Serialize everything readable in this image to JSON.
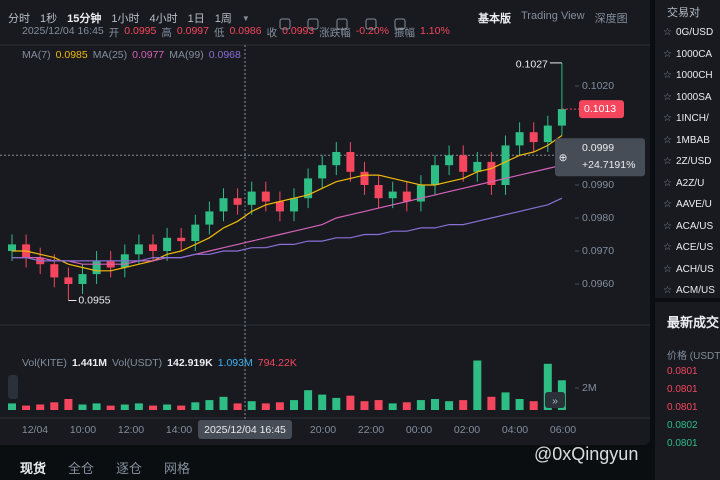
{
  "toolbar": {
    "intervals": [
      "分时",
      "1秒",
      "15分钟",
      "1小时",
      "4小时",
      "1日",
      "1周"
    ],
    "views": [
      "基本版",
      "Trading View",
      "深度图"
    ]
  },
  "info": {
    "time": "2025/12/04 16:45",
    "fields": [
      {
        "label": "开",
        "value": "0.0995"
      },
      {
        "label": "高",
        "value": "0.0997"
      },
      {
        "label": "低",
        "value": "0.0986"
      },
      {
        "label": "收",
        "value": "0.0993"
      },
      {
        "label": "涨跌幅",
        "value": "-0.20%"
      },
      {
        "label": "振幅",
        "value": "1.10%"
      }
    ]
  },
  "ma_legend": [
    {
      "label": "MA(7)",
      "value": "0.0985"
    },
    {
      "label": "MA(25)",
      "value": "0.0977"
    },
    {
      "label": "MA(99)",
      "value": "0.0968"
    }
  ],
  "vol_legend": [
    {
      "label": "Vol(KITE)",
      "value": "1.441M"
    },
    {
      "label": "Vol(USDT)",
      "value": "142.919K"
    },
    {
      "value": "1.093M"
    },
    {
      "value": "794.22K"
    }
  ],
  "chart_data": {
    "type": "candlestick",
    "open": [
      0.097,
      0.0972,
      0.0968,
      0.0966,
      0.0962,
      0.096,
      0.0963,
      0.0967,
      0.0965,
      0.0969,
      0.0972,
      0.097,
      0.0974,
      0.0973,
      0.0978,
      0.0982,
      0.0986,
      0.0984,
      0.0988,
      0.0985,
      0.0982,
      0.0986,
      0.0992,
      0.0996,
      0.1,
      0.0994,
      0.099,
      0.0986,
      0.0988,
      0.0985,
      0.099,
      0.0996,
      0.0999,
      0.0994,
      0.0997,
      0.099,
      0.1002,
      0.1006,
      0.1003,
      0.1008
    ],
    "high": [
      0.0975,
      0.0975,
      0.0971,
      0.0969,
      0.0965,
      0.0966,
      0.097,
      0.097,
      0.0972,
      0.0975,
      0.0975,
      0.0977,
      0.0977,
      0.0981,
      0.0985,
      0.0989,
      0.0989,
      0.0991,
      0.0991,
      0.0988,
      0.0989,
      0.0995,
      0.0999,
      0.1003,
      0.1003,
      0.0997,
      0.0993,
      0.0991,
      0.0991,
      0.0993,
      0.0999,
      0.1002,
      0.1002,
      0.1,
      0.1,
      0.1005,
      0.1009,
      0.1009,
      0.1011,
      0.1027
    ],
    "low": [
      0.0967,
      0.0965,
      0.0963,
      0.0959,
      0.0955,
      0.0957,
      0.096,
      0.0962,
      0.0962,
      0.0966,
      0.0967,
      0.0967,
      0.097,
      0.097,
      0.0975,
      0.0979,
      0.0981,
      0.0981,
      0.0982,
      0.0979,
      0.0979,
      0.0983,
      0.0989,
      0.0993,
      0.0991,
      0.0987,
      0.0983,
      0.0983,
      0.0982,
      0.0982,
      0.0987,
      0.0993,
      0.0991,
      0.0991,
      0.0987,
      0.0987,
      0.0999,
      0.1,
      0.1,
      0.1005
    ],
    "close": [
      0.0972,
      0.0968,
      0.0966,
      0.0962,
      0.096,
      0.0963,
      0.0967,
      0.0965,
      0.0969,
      0.0972,
      0.097,
      0.0974,
      0.0973,
      0.0978,
      0.0982,
      0.0986,
      0.0984,
      0.0988,
      0.0985,
      0.0982,
      0.0986,
      0.0992,
      0.0996,
      0.1,
      0.0994,
      0.099,
      0.0986,
      0.0988,
      0.0985,
      0.099,
      0.0996,
      0.0999,
      0.0994,
      0.0997,
      0.099,
      0.1002,
      0.1006,
      0.1003,
      0.1008,
      0.1013
    ],
    "volume": [
      0.6,
      0.4,
      0.5,
      0.7,
      1.0,
      0.5,
      0.6,
      0.4,
      0.5,
      0.6,
      0.4,
      0.5,
      0.4,
      0.7,
      0.9,
      1.2,
      0.6,
      0.8,
      0.6,
      0.7,
      0.9,
      1.8,
      1.4,
      1.1,
      1.3,
      0.8,
      0.9,
      0.6,
      0.7,
      0.9,
      1.0,
      0.8,
      0.9,
      4.5,
      1.2,
      1.6,
      1.0,
      0.8,
      4.2,
      2.7
    ],
    "ma": [
      {
        "color": "#f0b90b",
        "values": [
          0.097,
          0.097,
          0.0969,
          0.0968,
          0.0966,
          0.0965,
          0.0964,
          0.0964,
          0.0965,
          0.0966,
          0.0967,
          0.0969,
          0.097,
          0.0972,
          0.0974,
          0.0977,
          0.0979,
          0.0982,
          0.0984,
          0.0985,
          0.0986,
          0.0987,
          0.0989,
          0.0991,
          0.0992,
          0.0993,
          0.0993,
          0.0992,
          0.0991,
          0.099,
          0.099,
          0.0991,
          0.0992,
          0.0994,
          0.0995,
          0.0997,
          0.0999,
          0.1,
          0.1002,
          0.1005
        ]
      },
      {
        "color": "#d563b8",
        "values": [
          0.0968,
          0.0968,
          0.0968,
          0.0967,
          0.0967,
          0.0966,
          0.0966,
          0.0966,
          0.0966,
          0.0967,
          0.0967,
          0.0968,
          0.0968,
          0.0969,
          0.097,
          0.0971,
          0.0972,
          0.0973,
          0.0974,
          0.0975,
          0.0976,
          0.0977,
          0.0978,
          0.098,
          0.0981,
          0.0982,
          0.0983,
          0.0984,
          0.0985,
          0.0986,
          0.0987,
          0.0988,
          0.0989,
          0.099,
          0.0991,
          0.0992,
          0.0993,
          0.0994,
          0.0995,
          0.0996
        ]
      },
      {
        "color": "#8a6fd6",
        "values": [
          0.0968,
          0.0968,
          0.0967,
          0.0967,
          0.0967,
          0.0967,
          0.0967,
          0.0967,
          0.0967,
          0.0967,
          0.0968,
          0.0968,
          0.0968,
          0.0969,
          0.0969,
          0.097,
          0.097,
          0.0971,
          0.0971,
          0.0972,
          0.0972,
          0.0973,
          0.0973,
          0.0974,
          0.0974,
          0.0975,
          0.0975,
          0.0976,
          0.0976,
          0.0977,
          0.0977,
          0.0978,
          0.0978,
          0.0979,
          0.098,
          0.0981,
          0.0982,
          0.0983,
          0.0984,
          0.0986
        ]
      }
    ],
    "up_color": "#2ebd85",
    "down_color": "#f6465d",
    "yticks": [
      {
        "value": 0.096,
        "label": "0.0960"
      },
      {
        "value": 0.097,
        "label": "0.0970"
      },
      {
        "value": 0.098,
        "label": "0.0980"
      },
      {
        "value": 0.099,
        "label": "0.0990"
      },
      {
        "value": 0.102,
        "label": "0.1020"
      }
    ],
    "y2ticks": [
      {
        "value": 2,
        "label": "2M"
      }
    ],
    "xticks": [
      "12/04",
      "10:00",
      "12:00",
      "14:00",
      "20:00",
      "22:00",
      "00:00",
      "02:00",
      "04:00",
      "06:00"
    ],
    "crosshair": {
      "time": "2025/12/04 16:45",
      "price": {
        "value": 0.0999,
        "label": "0.0999"
      },
      "change": "+24.7191%"
    },
    "last_price": {
      "value": 0.1013,
      "label": "0.1013"
    },
    "high_label": {
      "value": 0.1027,
      "label": "0.1027"
    },
    "low_label": {
      "value": 0.0955,
      "label": "0.0955"
    }
  },
  "tabs": [
    "现货",
    "全仓",
    "逐仓",
    "网格"
  ],
  "pairs": {
    "title": "交易对",
    "items": [
      "0G/USD",
      "1000CA",
      "1000CH",
      "1000SA",
      "1INCH/",
      "1MBAB",
      "2Z/USD",
      "A2Z/U",
      "AAVE/U",
      "ACA/US",
      "ACE/US",
      "ACH/US",
      "ACM/US"
    ]
  },
  "trades": {
    "title": "最新成交",
    "header": "价格 (USDT",
    "prices": [
      "0.0801",
      "0.0801",
      "0.0801",
      "0.0802",
      "0.0801"
    ]
  },
  "watermark": "@0xQingyun"
}
